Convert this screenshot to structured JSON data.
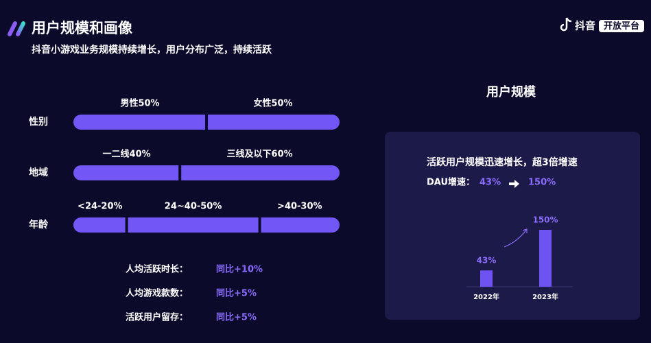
{
  "header": {
    "title": "用户规模和画像",
    "subtitle": "抖音小游戏业务规模持续增长，用户分布广泛，持续活跃",
    "brand": "抖音",
    "badge": "开放平台"
  },
  "demographics": [
    {
      "label": "性别",
      "segments": [
        {
          "text": "男性50%",
          "value": 50
        },
        {
          "text": "女性50%",
          "value": 50
        }
      ]
    },
    {
      "label": "地域",
      "segments": [
        {
          "text": "一二线40%",
          "value": 40
        },
        {
          "text": "三线及以下60%",
          "value": 60
        }
      ]
    },
    {
      "label": "年龄",
      "segments": [
        {
          "text": "<24-20%",
          "value": 20
        },
        {
          "text": "24~40-50%",
          "value": 50
        },
        {
          "text": ">40-30%",
          "value": 30
        }
      ]
    }
  ],
  "stats": [
    {
      "label": "人均活跃时长：",
      "value": "同比+10%"
    },
    {
      "label": "人均游戏款数：",
      "value": "同比+5%"
    },
    {
      "label": "活跃用户留存：",
      "value": "同比+5%"
    }
  ],
  "panel": {
    "title": "用户规模",
    "headline": "活跃用户规模迅速增长，超3倍增速",
    "dau_label": "DAU增速：",
    "dau_from": "43%",
    "dau_to": "150%"
  },
  "chart_data": {
    "type": "bar",
    "categories": [
      "2022年",
      "2023年"
    ],
    "values": [
      43,
      150
    ],
    "value_labels": [
      "43%",
      "150%"
    ],
    "color": "#6f52f2"
  }
}
